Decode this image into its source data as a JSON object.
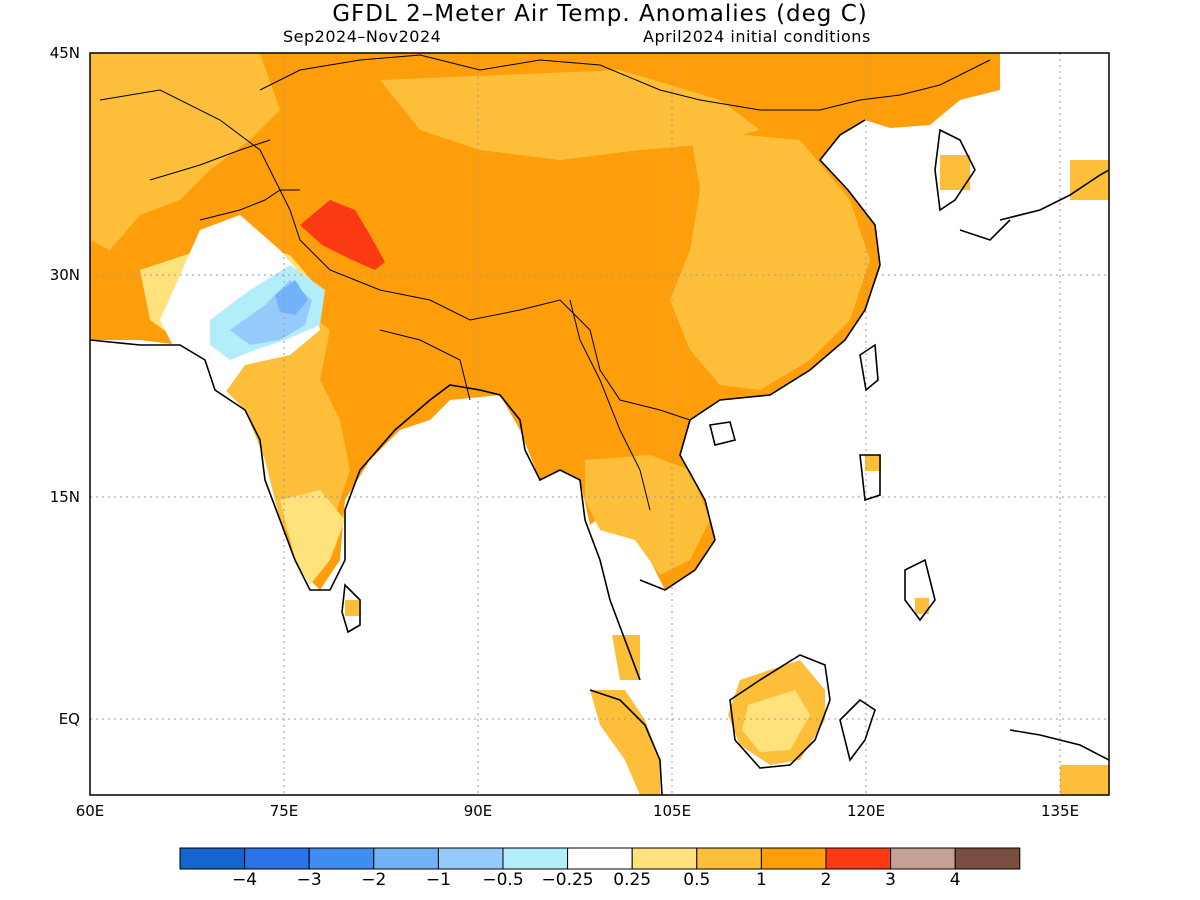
{
  "title": "GFDL 2–Meter Air Temp. Anomalies (deg C)",
  "subtitle_left": "Sep2024–Nov2024",
  "subtitle_right": "April2024 initial conditions",
  "lat_labels": [
    "45N",
    "30N",
    "15N",
    "EQ"
  ],
  "lon_labels": [
    "60E",
    "75E",
    "90E",
    "105E",
    "120E",
    "135E"
  ],
  "colorbar": {
    "colors": [
      "#1565d0",
      "#2a72e6",
      "#3f8df0",
      "#72b2f8",
      "#94cbfa",
      "#b2edfa",
      "#ffffff",
      "#ffe27c",
      "#fdbf3a",
      "#fd9e0a",
      "#fb3a14",
      "#c7a094",
      "#7b4f40"
    ],
    "labels": [
      "−4",
      "−3",
      "−2",
      "−1",
      "−0.5",
      "−0.25",
      "0.25",
      "0.5",
      "1",
      "2",
      "3",
      "4"
    ]
  },
  "map_colors": {
    "warm_1_2": "#fd9e0a",
    "warm_05_1": "#fdbf3a",
    "warm_025_05": "#ffe27c",
    "warm_2_3": "#fb3a14",
    "cool_05_025": "#b2edfa",
    "cool_1_05": "#94cbfa",
    "cool_2_1": "#72b2f8"
  }
}
